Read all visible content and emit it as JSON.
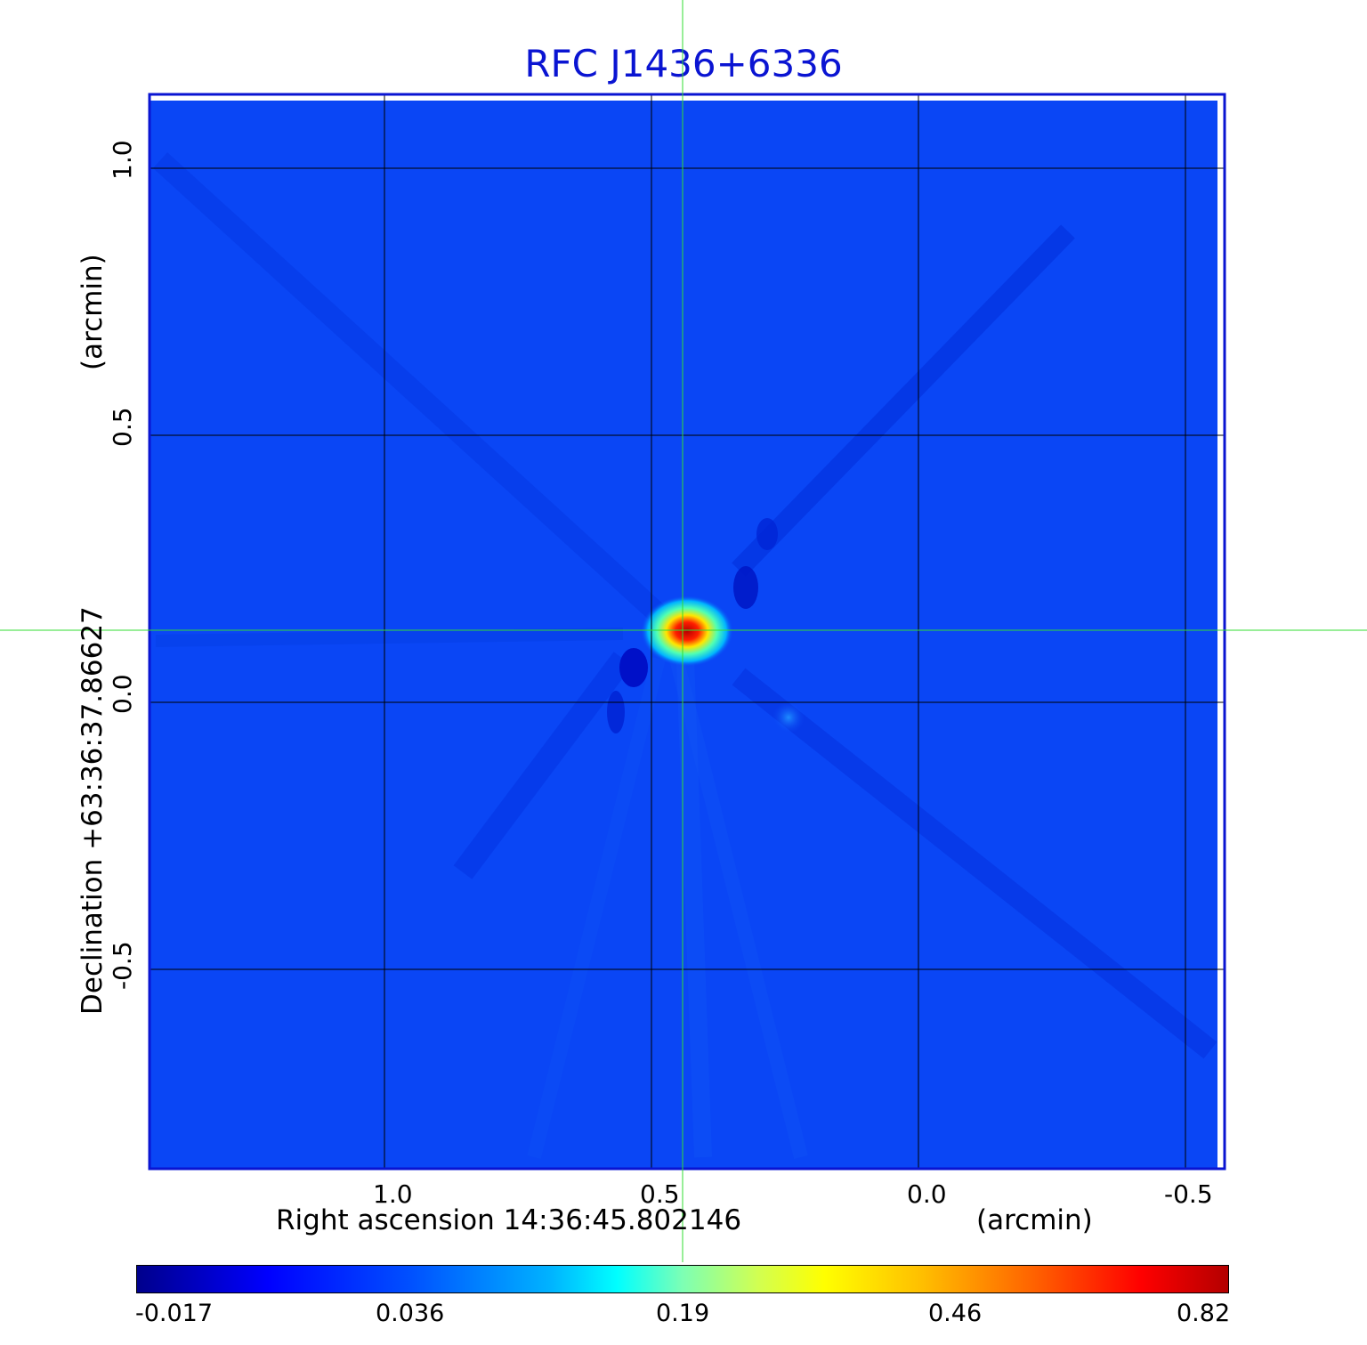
{
  "title": "RFC J1436+6336",
  "x_axis": {
    "label": "Right ascension  14:36:45.802146",
    "unit": "(arcmin)",
    "ticks": [
      "1.0",
      "0.5",
      "0.0",
      "-0.5"
    ]
  },
  "y_axis": {
    "label": "Declination  +63:36:37.86627",
    "unit": "(arcmin)",
    "ticks": [
      "1.0",
      "0.5",
      "0.0",
      "-0.5"
    ]
  },
  "colorbar": {
    "ticks": [
      "-0.017",
      "0.036",
      "0.19",
      "0.46",
      "0.82"
    ]
  },
  "colors": {
    "title": "#0a14d2",
    "frame": "#0a14d2",
    "background_map": "#0a46f5",
    "crosshair": "#32dc32",
    "grid": "#000000"
  }
}
